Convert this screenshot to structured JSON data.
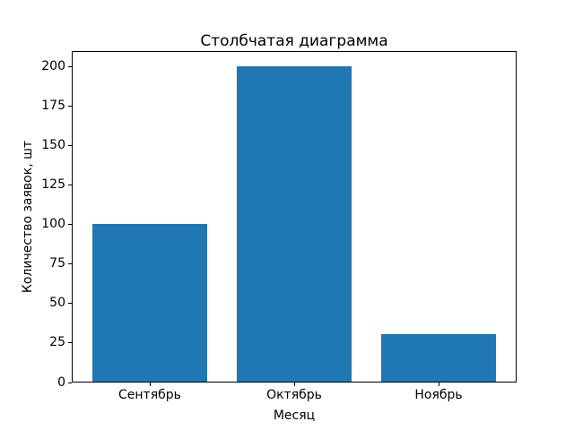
{
  "chart_data": {
    "type": "bar",
    "title": "Столбчатая диаграмма",
    "xlabel": "Месяц",
    "ylabel": "Количество заявок, шт",
    "categories": [
      "Сентябрь",
      "Октябрь",
      "Ноябрь"
    ],
    "values": [
      100,
      200,
      30
    ],
    "yticks": [
      0,
      25,
      50,
      75,
      100,
      125,
      150,
      175,
      200
    ],
    "ylim": [
      0,
      210
    ],
    "bar_color": "#1f77b4",
    "grid": false,
    "legend_position": "none"
  }
}
